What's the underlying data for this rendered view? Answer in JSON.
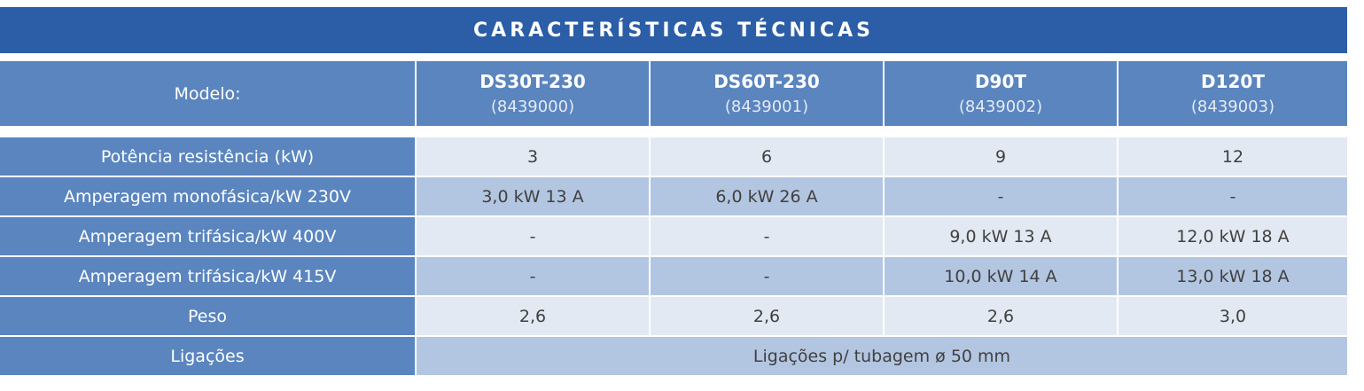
{
  "title": "CARACTERÍSTICAS TÉCNICAS",
  "header": {
    "label": "Modelo:",
    "models": [
      {
        "name": "DS30T-230",
        "code": "(8439000)"
      },
      {
        "name": "DS60T-230",
        "code": "(8439001)"
      },
      {
        "name": "D90T",
        "code": "(8439002)"
      },
      {
        "name": "D120T",
        "code": "(8439003)"
      }
    ]
  },
  "rows": [
    {
      "label": "Potência resistência (kW)",
      "cells": [
        "3",
        "6",
        "9",
        "12"
      ]
    },
    {
      "label": "Amperagem monofásica/kW 230V",
      "cells": [
        "3,0 kW 13 A",
        "6,0 kW 26 A",
        "-",
        "-"
      ]
    },
    {
      "label": "Amperagem trifásica/kW 400V",
      "cells": [
        "-",
        "-",
        "9,0 kW 13 A",
        "12,0 kW 18 A"
      ]
    },
    {
      "label": "Amperagem trifásica/kW 415V",
      "cells": [
        "-",
        "-",
        "10,0 kW 14 A",
        "13,0 kW 18 A"
      ]
    },
    {
      "label": "Peso",
      "cells": [
        "2,6",
        "2,6",
        "2,6",
        "3,0"
      ]
    },
    {
      "label": "Ligações",
      "cells": [
        "Ligações p/ tubagem ø 50 mm"
      ]
    }
  ]
}
